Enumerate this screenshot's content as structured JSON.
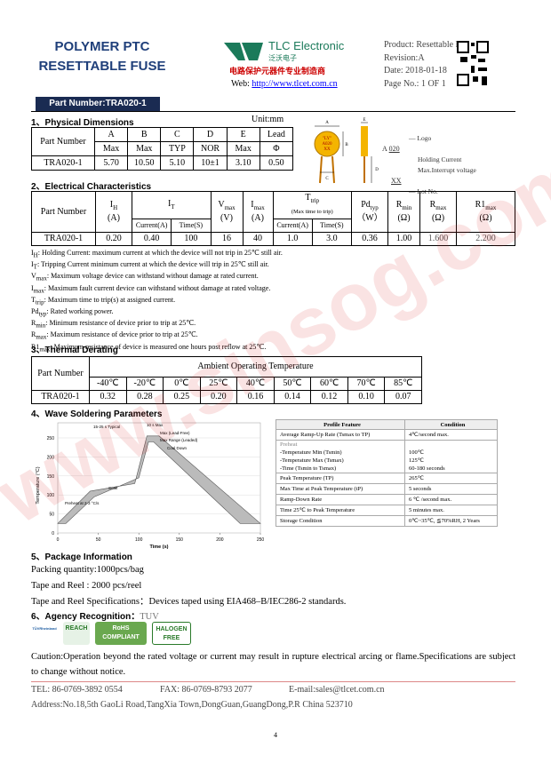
{
  "header": {
    "title_line1": "POLYMER PTC",
    "title_line2": "RESETTABLE FUSE",
    "company": "TLC Electronic",
    "company_cn": "泛沃电子",
    "slogan": "电路保护元器件专业制造商",
    "web_label": "Web:",
    "web_url": "http://www.tlcet.com.cn",
    "product": "Product: Resettable Fuse",
    "revision": "Revision:A",
    "date": "Date: 2018-01-18",
    "page_no": "Page No.: 1 OF 1"
  },
  "part_number": "Part Number:TRA020-1",
  "physical": {
    "title": "1、Physical Dimensions",
    "unit": "Unit:mm",
    "header": [
      "Part Number",
      "A",
      "B",
      "C",
      "D",
      "E",
      "Lead"
    ],
    "subheader": [
      "Max",
      "Max",
      "TYP",
      "NOR",
      "Max",
      "Φ"
    ],
    "row": [
      "TRA020-1",
      "5.70",
      "10.50",
      "5.10",
      "10±1",
      "3.10",
      "0.50"
    ]
  },
  "diagram": {
    "dims": [
      "A",
      "B",
      "C",
      "D",
      "E"
    ],
    "chip": [
      "\"LY\"",
      "A020",
      "XX"
    ],
    "marks": [
      "A",
      "020",
      "XX"
    ],
    "legend": [
      "— Logo",
      "Holding Current",
      "Max.Interrupt voltage",
      "— Lot No."
    ]
  },
  "electrical": {
    "title": "2、Electrical Characteristics",
    "part_number": "Part Number",
    "cols": [
      {
        "sym": "I",
        "sub": "H",
        "unit": "(A)"
      },
      {
        "sym": "I",
        "sub": "T"
      },
      {
        "sym": "V",
        "sub": "max",
        "unit": "(V)"
      },
      {
        "sym": "I",
        "sub": "max",
        "unit": "(A)"
      },
      {
        "sym": "T",
        "sub": "trip",
        "unit": "(Max time to trip)"
      },
      {
        "sym": "Pd",
        "sub": "typ",
        "unit": "（W）"
      },
      {
        "sym": "R",
        "sub": "min",
        "unit": "(Ω)"
      },
      {
        "sym": "R",
        "sub": "max",
        "unit": "(Ω)"
      },
      {
        "sym": "R1",
        "sub": "max",
        "unit": "(Ω)"
      }
    ],
    "it_sub": [
      "Current(A)",
      "Time(S)"
    ],
    "ttrip_sub": [
      "Current(A)",
      "Time(S)"
    ],
    "row": [
      "TRA020-1",
      "0.20",
      "0.40",
      "100",
      "16",
      "40",
      "1.0",
      "3.0",
      "0.36",
      "1.00",
      "1.600",
      "2.200"
    ]
  },
  "notes": [
    {
      "sym": "I",
      "sub": "H",
      "text": ": Holding Current: maximum current at which the device will not trip in 25℃ still air."
    },
    {
      "sym": "I",
      "sub": "T",
      "text": ": Tripping Current minimum current at which the device will trip in 25℃  still air."
    },
    {
      "sym": "V",
      "sub": "max",
      "text": ": Maximum voltage device can withstand without damage at rated current."
    },
    {
      "sym": "I",
      "sub": "max",
      "text": ": Maximum fault current device can withstand without damage at rated voltage."
    },
    {
      "sym": "T",
      "sub": "trip",
      "text": ": Maximum time to trip(s) at assigned current."
    },
    {
      "sym": "Pd",
      "sub": "typ",
      "text": ": Rated working power."
    },
    {
      "sym": "R",
      "sub": "min",
      "text": ": Minimum resistance of device prior to trip at 25℃."
    },
    {
      "sym": "R",
      "sub": "max",
      "text": ": Maximum resistance of device prior to trip at 25℃."
    },
    {
      "sym": "R1",
      "sub": "max",
      "text": ": Maximum resistance of device is measured one hours post reflow at 25℃."
    }
  ],
  "thermal": {
    "title": "3、Thermal Derating",
    "part_number": "Part Number",
    "ambient": "Ambient Operating Temperature",
    "temps": [
      "-40℃",
      "-20℃",
      "0℃",
      "25℃",
      "40℃",
      "50℃",
      "60℃",
      "70℃",
      "85℃"
    ],
    "row": [
      "TRA020-1",
      "0.32",
      "0.28",
      "0.25",
      "0.20",
      "0.16",
      "0.14",
      "0.12",
      "0.10",
      "0.07"
    ]
  },
  "wave": {
    "title": "4、Wave Soldering Parameters",
    "chart": {
      "ylabel": "Temperature (°C)",
      "xlabel": "Time (s)",
      "yticks": [
        0,
        50,
        100,
        150,
        200,
        250
      ],
      "xticks": [
        0,
        50,
        100,
        150,
        200,
        250
      ],
      "annotations": [
        "15-25 s Typical",
        "10 s Max",
        "Max (Lead-Free)",
        "Max Range (Leaded)",
        "Cool Down",
        "Soak",
        "Preheat at 2-3 °C/s"
      ]
    },
    "table": {
      "header": [
        "Profile Feature",
        "Condition"
      ],
      "rows": [
        {
          "feature": [
            "Average Ramp-Up Rate (Tsmax to TP)"
          ],
          "condition": [
            "4℃/second max."
          ]
        },
        {
          "feature": [
            "Preheat",
            "-Temperature Min (Tsmin)",
            "-Temperature Max (Tsmax)",
            "-Time (Tsmin to Tsmax)"
          ],
          "condition": [
            "100℃",
            "125℃",
            "60-180 seconds"
          ]
        },
        {
          "feature": [
            "Peak Temperature (TP)"
          ],
          "condition": [
            "265℃"
          ]
        },
        {
          "feature": [
            "Max Time at Peak Temperature (tP)"
          ],
          "condition": [
            "5 seconds"
          ]
        },
        {
          "feature": [
            "Ramp-Down Rate"
          ],
          "condition": [
            "6 ℃ /second max."
          ]
        },
        {
          "feature": [
            "Time 25℃ to Peak Temperature"
          ],
          "condition": [
            "5 minutes max."
          ]
        },
        {
          "feature": [
            "Storage Condition"
          ],
          "condition": [
            "0℃~35℃, ≦70%RH, 2 Years"
          ]
        }
      ]
    }
  },
  "package": {
    "title": "5、Package Information",
    "lines": [
      "Packing quantity:1000pcs/bag",
      "Tape and Reel : 2000 pcs/reel",
      "Tape and Reel Specifications：Devices taped using EIA468–B/IEC286-2 standards."
    ]
  },
  "agency": {
    "title": "6、Agency Recognition：",
    "value": "TUV",
    "logos": [
      "TÜVRheinland",
      "REACH",
      "RoHS",
      "COMPLIANT",
      "HALOGEN",
      "FREE"
    ]
  },
  "caution": "Caution:Operation beyond the rated voltage or current may result in rupture electrical arcing or flame.Specifications are subject to change without notice.",
  "footer": {
    "tel": "TEL: 86-0769-3892 0554",
    "fax": "FAX: 86-0769-8793 2077",
    "email": "E-mail:sales@tlcet.com.cn",
    "address": "Address:No.18,5th GaoLi Road,TangXia Town,DongGuan,GuangDong,P.R China 523710"
  },
  "page_number": "4",
  "watermark": "www.sinsog.com"
}
